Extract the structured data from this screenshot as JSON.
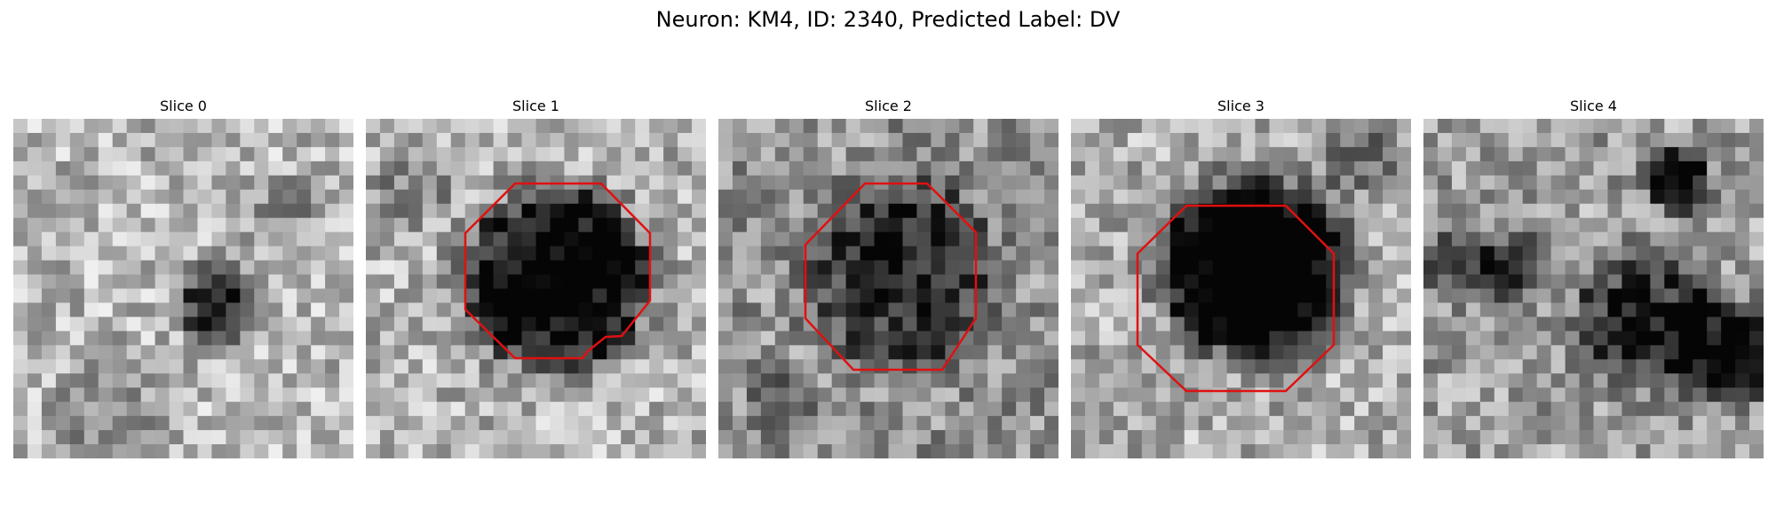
{
  "figure": {
    "title": "Neuron: KM4, ID: 2340, Predicted Label: DV"
  },
  "panels": [
    {
      "title": "Slice 0",
      "has_outline": false,
      "outline_color": "#e01010"
    },
    {
      "title": "Slice 1",
      "has_outline": true,
      "outline_color": "#e01010"
    },
    {
      "title": "Slice 2",
      "has_outline": true,
      "outline_color": "#e01010"
    },
    {
      "title": "Slice 3",
      "has_outline": true,
      "outline_color": "#e01010"
    },
    {
      "title": "Slice 4",
      "has_outline": false,
      "outline_color": "#e01010"
    }
  ]
}
